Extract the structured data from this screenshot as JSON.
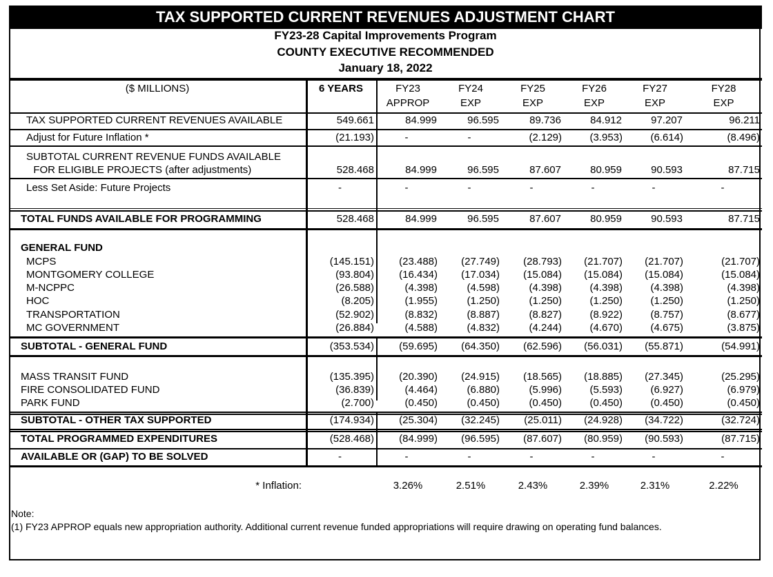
{
  "title": "TAX SUPPORTED CURRENT REVENUES ADJUSTMENT CHART",
  "subtitle_lines": [
    "FY23-28 Capital Improvements Program",
    "COUNTY EXECUTIVE RECOMMENDED",
    "January 18, 2022"
  ],
  "header": {
    "label": "($ MILLIONS)",
    "columns": [
      {
        "line1": "6 YEARS",
        "line2": ""
      },
      {
        "line1": "FY23",
        "line2": "APPROP"
      },
      {
        "line1": "FY24",
        "line2": "EXP"
      },
      {
        "line1": "FY25",
        "line2": "EXP"
      },
      {
        "line1": "FY26",
        "line2": "EXP"
      },
      {
        "line1": "FY27",
        "line2": "EXP"
      },
      {
        "line1": "FY28",
        "line2": "EXP"
      }
    ]
  },
  "rows": [
    {
      "id": "available",
      "label": [
        "TAX SUPPORTED CURRENT REVENUES AVAILABLE"
      ],
      "values": [
        "549.661",
        "84.999",
        "96.595",
        "89.736",
        "84.912",
        "97.207",
        "96.211"
      ]
    },
    {
      "id": "inflation-adjust",
      "label": [
        "Adjust for Future Inflation *"
      ],
      "values": [
        "(21.193)",
        "-",
        "-",
        "(2.129)",
        "(3.953)",
        "(6.614)",
        "(8.496)"
      ]
    },
    {
      "id": "subtotal-available",
      "label": [
        "SUBTOTAL CURRENT REVENUE FUNDS AVAILABLE",
        "  FOR ELIGIBLE PROJECTS (after adjustments)"
      ],
      "values": [
        "528.468",
        "84.999",
        "96.595",
        "87.607",
        "80.959",
        "90.593",
        "87.715"
      ]
    },
    {
      "id": "set-aside",
      "label": [
        "Less Set Aside: Future Projects"
      ],
      "values": [
        "-",
        "-",
        "-",
        "-",
        "-",
        "-",
        "-"
      ]
    },
    {
      "id": "total-funds",
      "label": [
        "TOTAL FUNDS AVAILABLE FOR PROGRAMMING"
      ],
      "values": [
        "528.468",
        "84.999",
        "96.595",
        "87.607",
        "80.959",
        "90.593",
        "87.715"
      ]
    },
    {
      "id": "general-fund-header",
      "label": [
        "GENERAL FUND"
      ],
      "values": []
    },
    {
      "id": "mcps",
      "label": [
        "MCPS"
      ],
      "values": [
        "(145.151)",
        "(23.488)",
        "(27.749)",
        "(28.793)",
        "(21.707)",
        "(21.707)",
        "(21.707)"
      ]
    },
    {
      "id": "montgomery-college",
      "label": [
        "MONTGOMERY COLLEGE"
      ],
      "values": [
        "(93.804)",
        "(16.434)",
        "(17.034)",
        "(15.084)",
        "(15.084)",
        "(15.084)",
        "(15.084)"
      ]
    },
    {
      "id": "m-ncppc",
      "label": [
        "M-NCPPC"
      ],
      "values": [
        "(26.588)",
        "(4.398)",
        "(4.598)",
        "(4.398)",
        "(4.398)",
        "(4.398)",
        "(4.398)"
      ]
    },
    {
      "id": "hoc",
      "label": [
        "HOC"
      ],
      "values": [
        "(8.205)",
        "(1.955)",
        "(1.250)",
        "(1.250)",
        "(1.250)",
        "(1.250)",
        "(1.250)"
      ]
    },
    {
      "id": "transportation",
      "label": [
        "TRANSPORTATION"
      ],
      "values": [
        "(52.902)",
        "(8.832)",
        "(8.887)",
        "(8.827)",
        "(8.922)",
        "(8.757)",
        "(8.677)"
      ]
    },
    {
      "id": "mc-government",
      "label": [
        "MC GOVERNMENT"
      ],
      "values": [
        "(26.884)",
        "(4.588)",
        "(4.832)",
        "(4.244)",
        "(4.670)",
        "(4.675)",
        "(3.875)"
      ]
    },
    {
      "id": "subtotal-general-fund",
      "label": [
        "SUBTOTAL - GENERAL FUND"
      ],
      "values": [
        "(353.534)",
        "(59.695)",
        "(64.350)",
        "(62.596)",
        "(56.031)",
        "(55.871)",
        "(54.991)"
      ]
    },
    {
      "id": "mass-transit",
      "label": [
        "MASS TRANSIT FUND"
      ],
      "values": [
        "(135.395)",
        "(20.390)",
        "(24.915)",
        "(18.565)",
        "(18.885)",
        "(27.345)",
        "(25.295)"
      ]
    },
    {
      "id": "fire-consolidated",
      "label": [
        "FIRE CONSOLIDATED FUND"
      ],
      "values": [
        "(36.839)",
        "(4.464)",
        "(6.880)",
        "(5.996)",
        "(5.593)",
        "(6.927)",
        "(6.979)"
      ]
    },
    {
      "id": "park-fund",
      "label": [
        "PARK FUND"
      ],
      "values": [
        "(2.700)",
        "(0.450)",
        "(0.450)",
        "(0.450)",
        "(0.450)",
        "(0.450)",
        "(0.450)"
      ]
    },
    {
      "id": "subtotal-other",
      "label": [
        "SUBTOTAL - OTHER TAX SUPPORTED"
      ],
      "values": [
        "(174.934)",
        "(25.304)",
        "(32.245)",
        "(25.011)",
        "(24.928)",
        "(34.722)",
        "(32.724)"
      ]
    },
    {
      "id": "total-programmed",
      "label": [
        "TOTAL PROGRAMMED EXPENDITURES"
      ],
      "values": [
        "(528.468)",
        "(84.999)",
        "(96.595)",
        "(87.607)",
        "(80.959)",
        "(90.593)",
        "(87.715)"
      ]
    },
    {
      "id": "gap",
      "label": [
        "AVAILABLE OR (GAP) TO BE SOLVED"
      ],
      "values": [
        "-",
        "-",
        "-",
        "-",
        "-",
        "-",
        "-"
      ]
    }
  ],
  "inflation": {
    "label": "* Inflation:",
    "values": [
      "3.26%",
      "2.51%",
      "2.43%",
      "2.39%",
      "2.31%",
      "2.22%"
    ]
  },
  "note": {
    "heading": "Note:",
    "text": "(1) FY23 APPROP equals new appropriation authority.  Additional current revenue funded appropriations will require drawing on operating fund balances."
  }
}
